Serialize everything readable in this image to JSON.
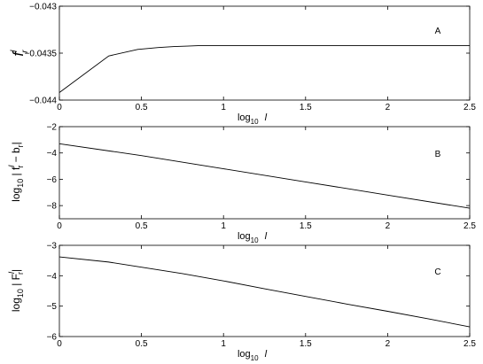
{
  "chart_data": [
    {
      "type": "line",
      "panel_label": "A",
      "ylabel_parts": {
        "base": "f",
        "sup": "l",
        "sub": "r"
      },
      "xlabel_parts": {
        "base": "log",
        "sub": "10",
        "var": "l"
      },
      "xlim": [
        0,
        2.5
      ],
      "ylim": [
        -0.044,
        -0.043
      ],
      "xticks": [
        0,
        0.5,
        1,
        1.5,
        2,
        2.5
      ],
      "xtick_labels": [
        "0",
        "0.5",
        "1",
        "1.5",
        "2",
        "2.5"
      ],
      "yticks": [
        -0.043,
        -0.0435,
        -0.044
      ],
      "ytick_labels": [
        "−0.043",
        "−0.0435",
        "−0.044"
      ],
      "series": [
        {
          "x": [
            0,
            0.301,
            0.477,
            0.602,
            0.699,
            0.778,
            0.845,
            0.903,
            1,
            1.301,
            1.699,
            2,
            2.301,
            2.5
          ],
          "y": [
            -0.04392,
            -0.04353,
            -0.04346,
            -0.04344,
            -0.04343,
            -0.043425,
            -0.04342,
            -0.04342,
            -0.04342,
            -0.04342,
            -0.04342,
            -0.04342,
            -0.04342,
            -0.04342
          ]
        }
      ]
    },
    {
      "type": "line",
      "panel_label": "B",
      "ylabel_parts": {
        "pre": "log",
        "sub10": "10",
        "expr": "| f",
        "sup": "l",
        "sub": "r",
        "mid": " − b",
        "sub2": "r",
        "post": "|"
      },
      "xlabel_parts": {
        "base": "log",
        "sub": "10",
        "var": "l"
      },
      "xlim": [
        0,
        2.5
      ],
      "ylim": [
        -9,
        -2
      ],
      "xticks": [
        0,
        0.5,
        1,
        1.5,
        2,
        2.5
      ],
      "xtick_labels": [
        "0",
        "0.5",
        "1",
        "1.5",
        "2",
        "2.5"
      ],
      "yticks": [
        -2,
        -4,
        -6,
        -8
      ],
      "ytick_labels": [
        "−2",
        "−4",
        "−6",
        "−8"
      ],
      "series": [
        {
          "x": [
            0,
            0.5,
            1,
            1.5,
            2,
            2.5
          ],
          "y": [
            -3.3,
            -4.2,
            -5.2,
            -6.2,
            -7.2,
            -8.2
          ]
        }
      ]
    },
    {
      "type": "line",
      "panel_label": "C",
      "ylabel_parts": {
        "pre": "log",
        "sub10": "10",
        "expr": "| F",
        "sup": "l",
        "sub": "r",
        "post": "|"
      },
      "xlabel_parts": {
        "base": "log",
        "sub": "10",
        "var": "l"
      },
      "xlim": [
        0,
        2.5
      ],
      "ylim": [
        -6,
        -3
      ],
      "xticks": [
        0,
        0.5,
        1,
        1.5,
        2,
        2.5
      ],
      "xtick_labels": [
        "0",
        "0.5",
        "1",
        "1.5",
        "2",
        "2.5"
      ],
      "yticks": [
        -3,
        -4,
        -5,
        -6
      ],
      "ytick_labels": [
        "−3",
        "−4",
        "−5",
        "−6"
      ],
      "series": [
        {
          "x": [
            0,
            0.3,
            0.5,
            0.75,
            1,
            1.25,
            1.5,
            1.75,
            2,
            2.25,
            2.5
          ],
          "y": [
            -3.38,
            -3.55,
            -3.72,
            -3.93,
            -4.17,
            -4.43,
            -4.68,
            -4.93,
            -5.17,
            -5.42,
            -5.68
          ]
        }
      ]
    }
  ]
}
